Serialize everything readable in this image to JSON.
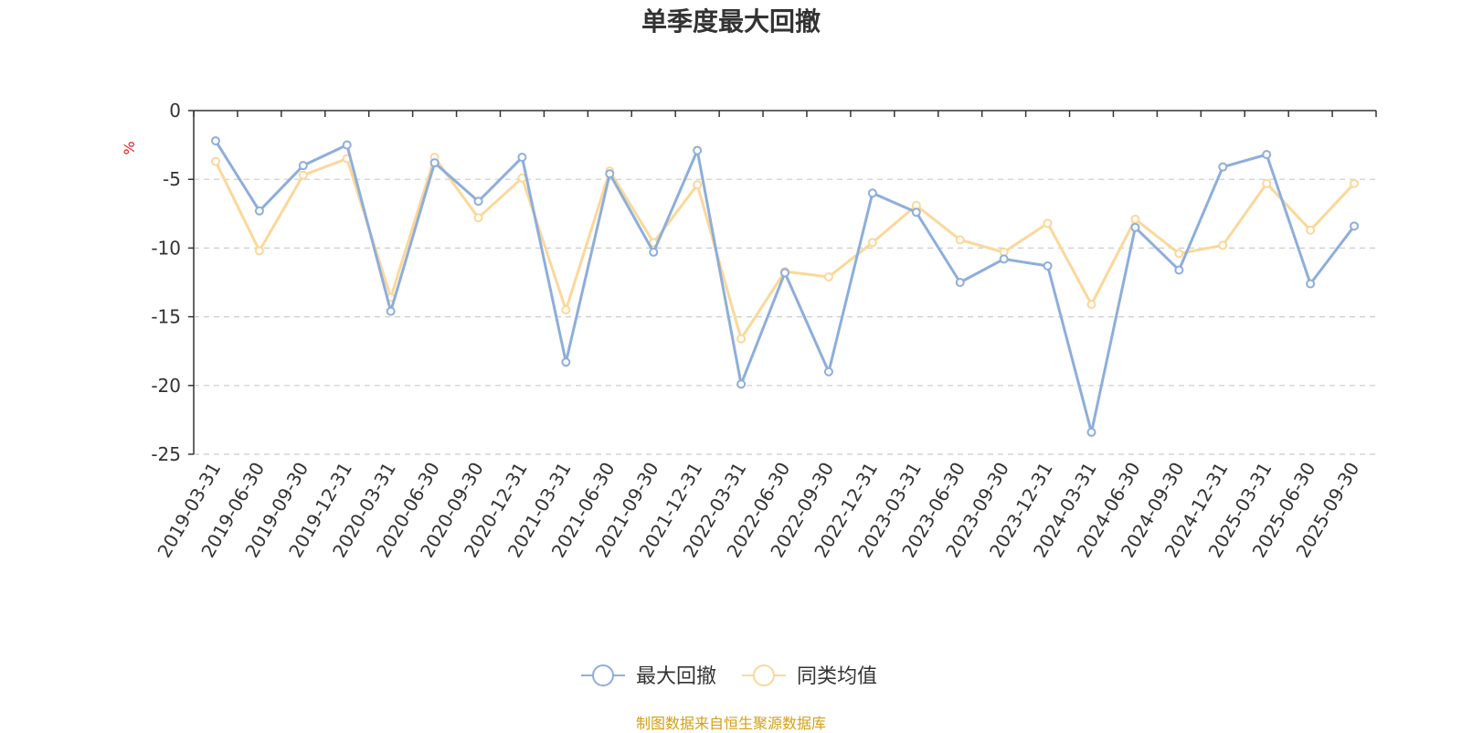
{
  "chart_data": {
    "type": "line",
    "title": "单季度最大回撤",
    "ylabel": "%",
    "xlabel": "",
    "ylim": [
      -25,
      0
    ],
    "yticks": [
      0,
      -5,
      -10,
      -15,
      -20,
      -25
    ],
    "grid": true,
    "legend_position": "bottom-center",
    "categories": [
      "2019-03-31",
      "2019-06-30",
      "2019-09-30",
      "2019-12-31",
      "2020-03-31",
      "2020-06-30",
      "2020-09-30",
      "2020-12-31",
      "2021-03-31",
      "2021-06-30",
      "2021-09-30",
      "2021-12-31",
      "2022-03-31",
      "2022-06-30",
      "2022-09-30",
      "2022-12-31",
      "2023-03-31",
      "2023-06-30",
      "2023-09-30",
      "2023-12-31",
      "2024-03-31",
      "2024-06-30",
      "2024-09-30",
      "2024-12-31",
      "2025-03-31",
      "2025-06-30",
      "2025-09-30"
    ],
    "series": [
      {
        "name": "最大回撤",
        "color": "#8eaedb",
        "values": [
          -2.2,
          -7.3,
          -4.0,
          -2.5,
          -14.6,
          -3.8,
          -6.6,
          -3.4,
          -18.3,
          -4.6,
          -10.3,
          -2.9,
          -19.9,
          -11.8,
          -19.0,
          -6.0,
          -7.4,
          -12.5,
          -10.8,
          -11.3,
          -23.4,
          -8.5,
          -11.6,
          -4.1,
          -3.2,
          -12.6,
          -8.4
        ]
      },
      {
        "name": "同类均值",
        "color": "#fbd89a",
        "values": [
          -3.7,
          -10.2,
          -4.7,
          -3.5,
          -13.6,
          -3.4,
          -7.8,
          -4.9,
          -14.5,
          -4.4,
          -9.6,
          -5.4,
          -16.6,
          -11.7,
          -12.1,
          -9.6,
          -6.9,
          -9.4,
          -10.3,
          -8.2,
          -14.1,
          -7.9,
          -10.4,
          -9.8,
          -5.3,
          -8.7,
          -5.3
        ]
      }
    ]
  },
  "source_note": "制图数据来自恒生聚源数据库"
}
